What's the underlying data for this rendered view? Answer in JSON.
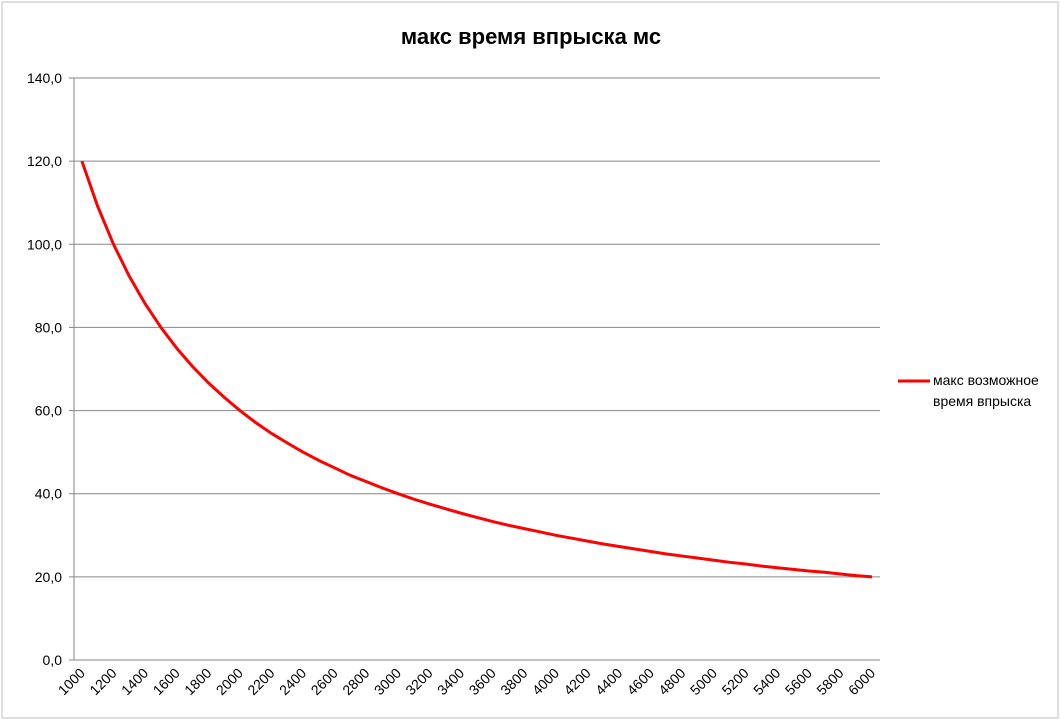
{
  "chart_data": {
    "type": "line",
    "title": "макс время впрыска мс",
    "categories": [
      "1000",
      null,
      "1200",
      null,
      "1400",
      null,
      "1600",
      null,
      "1800",
      null,
      "2000",
      null,
      "2200",
      null,
      "2400",
      null,
      "2600",
      null,
      "2800",
      null,
      "3000",
      null,
      "3200",
      null,
      "3400",
      null,
      "3600",
      null,
      "3800",
      null,
      "4000",
      null,
      "4200",
      null,
      "4400",
      null,
      "4600",
      null,
      "4800",
      null,
      "5000",
      null,
      "5200",
      null,
      "5400",
      null,
      "5600",
      null,
      "5800",
      null,
      "6000"
    ],
    "series": [
      {
        "name": "макс возможное время впрыска",
        "color": "#ff0000",
        "values": [
          120.0,
          109.1,
          100.0,
          92.3,
          85.7,
          80.0,
          75.0,
          70.6,
          66.7,
          63.2,
          60.0,
          57.1,
          54.5,
          52.2,
          50.0,
          48.0,
          46.2,
          44.4,
          42.9,
          41.4,
          40.0,
          38.7,
          37.5,
          36.4,
          35.3,
          34.3,
          33.3,
          32.4,
          31.6,
          30.8,
          30.0,
          29.3,
          28.6,
          27.9,
          27.3,
          26.7,
          26.1,
          25.5,
          25.0,
          24.5,
          24.0,
          23.5,
          23.1,
          22.6,
          22.2,
          21.8,
          21.4,
          21.1,
          20.7,
          20.3,
          20.0
        ]
      }
    ],
    "ylim": [
      0,
      140
    ],
    "yticks": [
      {
        "value": 0,
        "label": "0,0"
      },
      {
        "value": 20,
        "label": "20,0"
      },
      {
        "value": 40,
        "label": "40,0"
      },
      {
        "value": 60,
        "label": "60,0"
      },
      {
        "value": 80,
        "label": "80,0"
      },
      {
        "value": 100,
        "label": "100,0"
      },
      {
        "value": 120,
        "label": "120,0"
      },
      {
        "value": 140,
        "label": "140,0"
      }
    ],
    "grid": true,
    "legend": "right"
  }
}
